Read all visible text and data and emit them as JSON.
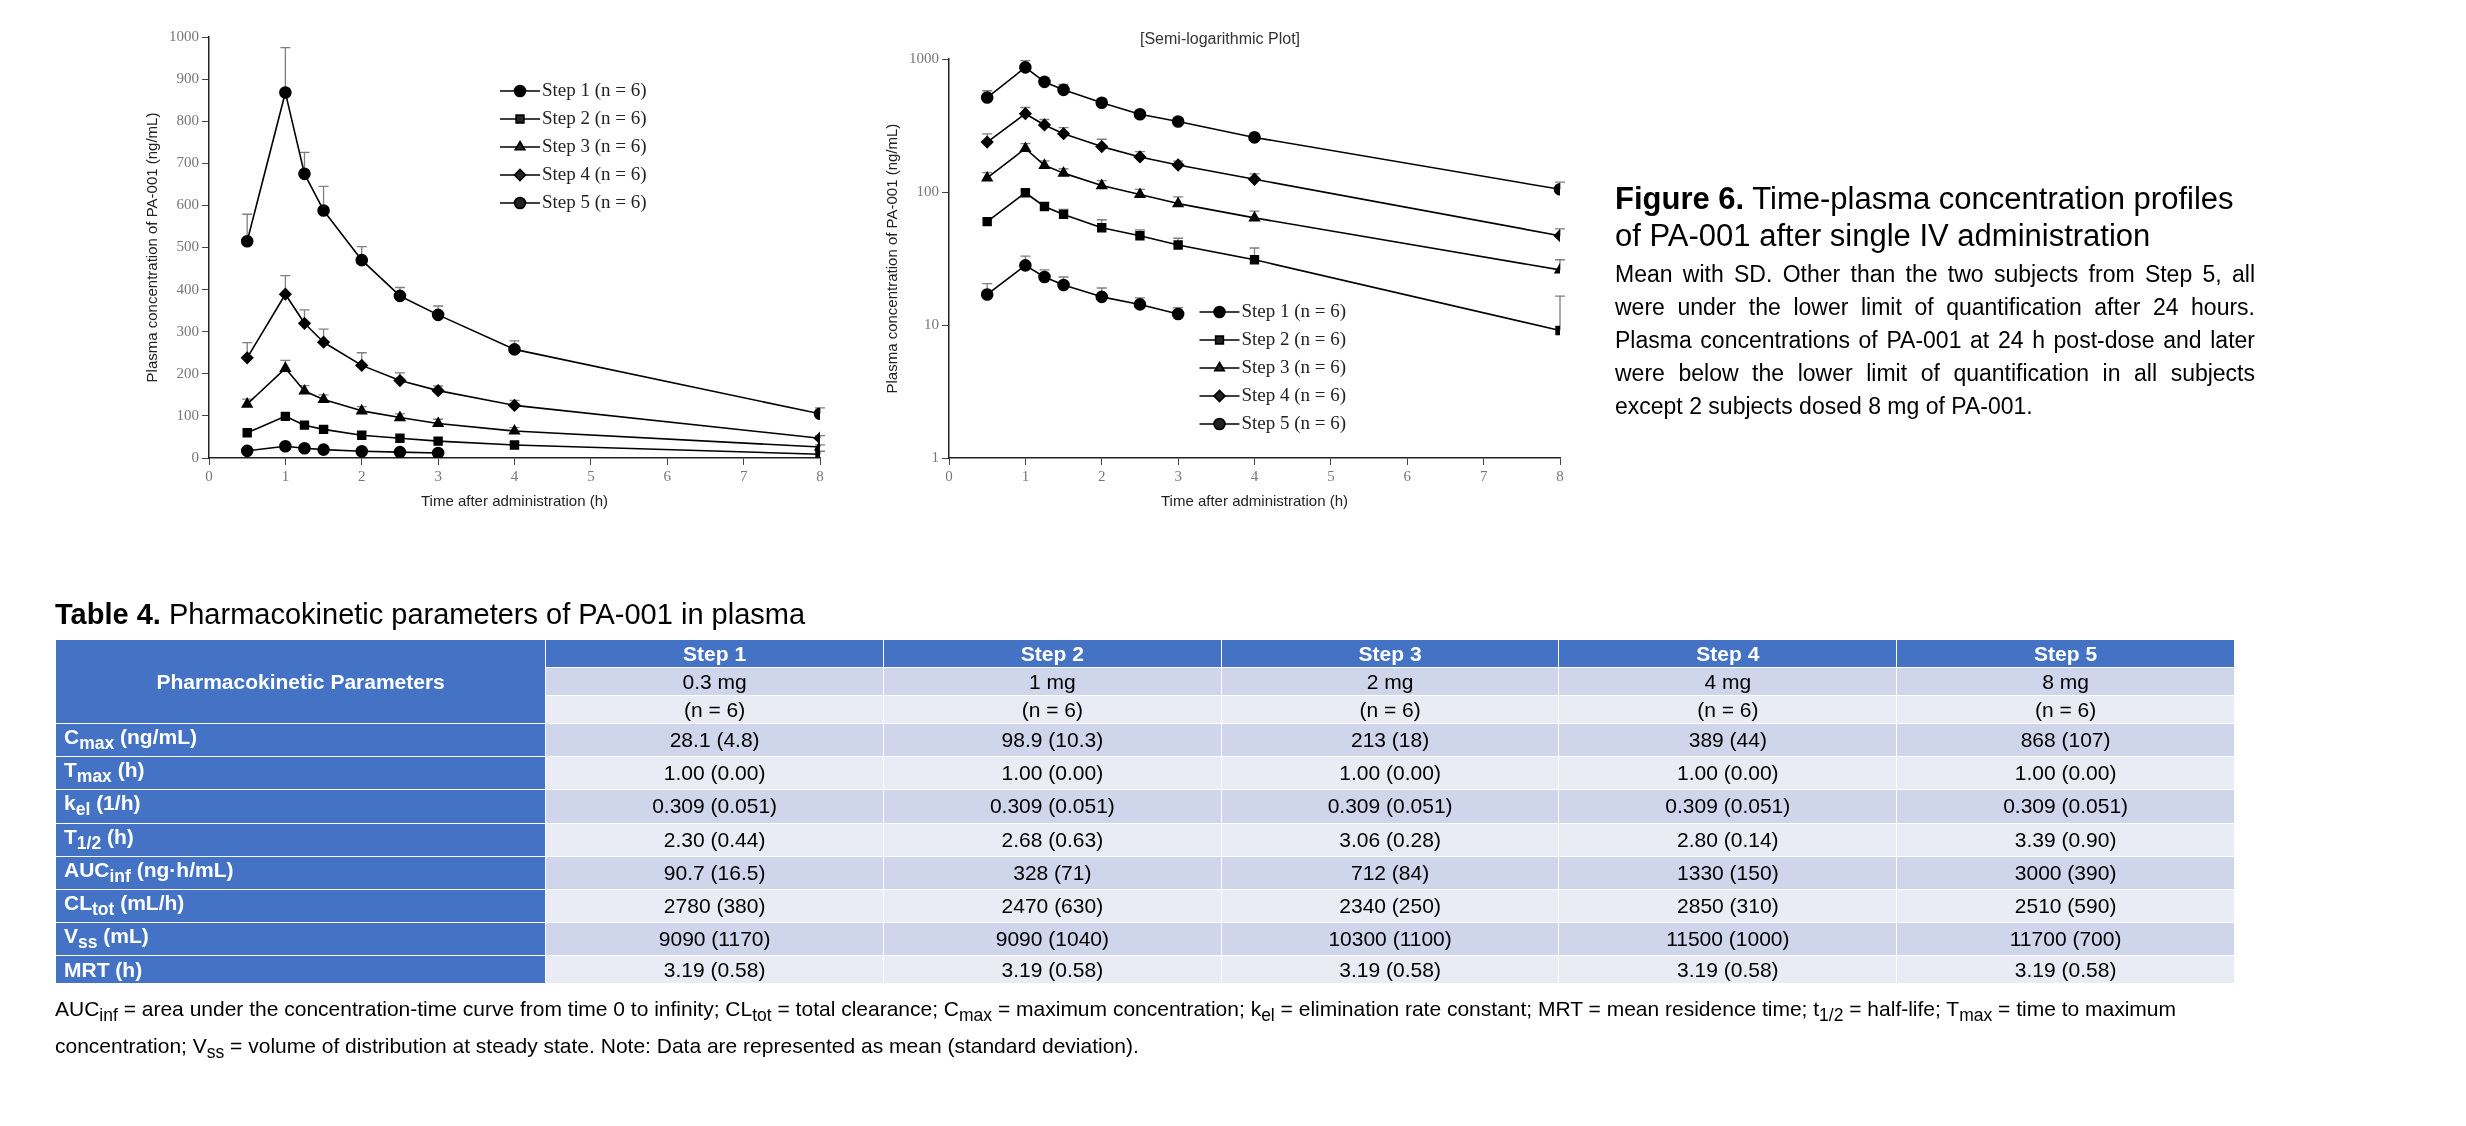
{
  "chart_data": [
    {
      "type": "line",
      "xlabel": "Time after administration (h)",
      "ylabel": "Plasma concentration of PA-001 (ng/mL)",
      "xlim": [
        0,
        8
      ],
      "xticks": [
        0,
        1,
        2,
        3,
        4,
        5,
        6,
        7,
        8
      ],
      "ylim": [
        0,
        1000
      ],
      "yticks": [
        0,
        100,
        200,
        300,
        400,
        500,
        600,
        700,
        800,
        900,
        1000
      ],
      "grid": false,
      "legend": "top right",
      "x": [
        0.5,
        1,
        1.25,
        1.5,
        2,
        2.5,
        3,
        4,
        8
      ],
      "series": [
        {
          "name": "Step 1 (n = 6)",
          "color": "#000000",
          "marker": "circle",
          "values": [
            17,
            28,
            23,
            20,
            16,
            14,
            12,
            null,
            null
          ]
        },
        {
          "name": "Step 2 (n = 6)",
          "color": "#000000",
          "marker": "square",
          "values": [
            60,
            99,
            78,
            68,
            54,
            47,
            40,
            31,
            9
          ],
          "errors": [
            null,
            null,
            null,
            [
              68,
              74
            ],
            [
              54,
              62
            ],
            null,
            null,
            [
              31,
              38
            ],
            [
              9,
              16
            ]
          ]
        },
        {
          "name": "Step 3 (n = 6)",
          "color": "#000000",
          "marker": "triangle",
          "values": [
            128,
            213,
            159,
            139,
            112,
            96,
            82,
            64,
            26
          ],
          "errors": [
            [
              128,
              140
            ],
            [
              213,
              232
            ],
            [
              159,
              172
            ],
            [
              139,
              150
            ],
            [
              112,
              122
            ],
            [
              96,
              105
            ],
            [
              82,
              92
            ],
            [
              64,
              72
            ],
            [
              26,
              31
            ]
          ]
        },
        {
          "name": "Step 4 (n = 6)",
          "color": "#000000",
          "marker": "diamond",
          "values": [
            238,
            389,
            320,
            275,
            220,
            184,
            160,
            125,
            47
          ],
          "errors": [
            [
              238,
              274
            ],
            [
              389,
              433
            ],
            [
              320,
              352
            ],
            [
              275,
              306
            ],
            [
              220,
              250
            ],
            [
              184,
              202
            ],
            [
              160,
              171
            ],
            [
              125,
              137
            ],
            [
              47,
              53
            ]
          ]
        },
        {
          "name": "Step 5 (n = 6)",
          "color": "#000000",
          "marker": "circle",
          "values": [
            515,
            868,
            675,
            588,
            470,
            385,
            340,
            258,
            105
          ],
          "errors": [
            [
              515,
              579
            ],
            [
              868,
              975
            ],
            [
              675,
              726
            ],
            [
              588,
              645
            ],
            [
              470,
              502
            ],
            [
              385,
              405
            ],
            [
              340,
              361
            ],
            [
              258,
              278
            ],
            [
              105,
              119
            ]
          ]
        }
      ]
    },
    {
      "type": "line",
      "title": "[Semi-logarithmic Plot]",
      "xlabel": "Time after administration (h)",
      "ylabel": "Plasma concentration of PA-001 (ng/mL)",
      "log": true,
      "xlim": [
        0,
        8
      ],
      "xticks": [
        0,
        1,
        2,
        3,
        4,
        5,
        6,
        7,
        8
      ],
      "ylim": [
        1,
        1000
      ],
      "yticks": [
        1,
        10,
        100,
        1000
      ],
      "grid": false,
      "legend": "bottom",
      "x": [
        0.5,
        1,
        1.25,
        1.5,
        2,
        2.5,
        3,
        4,
        8
      ],
      "series": [
        {
          "name": "Step 1 (n = 6)",
          "color": "#000000",
          "marker": "circle",
          "values": [
            17,
            28.1,
            23,
            20,
            16.3,
            14.3,
            12.1,
            null,
            null
          ],
          "errors": [
            [
              17,
              20.5
            ],
            [
              28.1,
              33
            ],
            [
              23,
              26
            ],
            [
              20,
              23
            ],
            [
              16.3,
              19
            ],
            [
              14.3,
              16
            ],
            [
              12.1,
              13.5
            ],
            null,
            null
          ]
        },
        {
          "name": "Step 2 (n = 6)",
          "color": "#000000",
          "marker": "square",
          "values": [
            60,
            98.9,
            78,
            68,
            54,
            47,
            40,
            31,
            9.1
          ],
          "errors": [
            [
              60,
              63
            ],
            [
              98.9,
              104
            ],
            [
              78,
              83
            ],
            [
              68,
              74
            ],
            [
              54,
              62
            ],
            [
              47,
              52
            ],
            [
              40,
              45
            ],
            [
              31,
              38
            ],
            [
              9.1,
              16.5
            ]
          ]
        },
        {
          "name": "Step 3 (n = 6)",
          "color": "#000000",
          "marker": "triangle",
          "values": [
            128,
            213,
            159,
            139,
            112,
            96,
            82,
            64,
            26
          ],
          "errors": [
            [
              128,
              140
            ],
            [
              213,
              232
            ],
            [
              159,
              172
            ],
            [
              139,
              150
            ],
            [
              112,
              122
            ],
            [
              96,
              105
            ],
            [
              82,
              92
            ],
            [
              64,
              72
            ],
            [
              26,
              31
            ]
          ]
        },
        {
          "name": "Step 4 (n = 6)",
          "color": "#000000",
          "marker": "diamond",
          "values": [
            238,
            389,
            320,
            275,
            220,
            184,
            160,
            125,
            47
          ],
          "errors": [
            [
              238,
              274
            ],
            [
              389,
              433
            ],
            [
              320,
              352
            ],
            [
              275,
              306
            ],
            [
              220,
              250
            ],
            [
              184,
              202
            ],
            [
              160,
              171
            ],
            [
              125,
              137
            ],
            [
              47,
              53
            ]
          ]
        },
        {
          "name": "Step 5 (n = 6)",
          "color": "#000000",
          "marker": "circle",
          "values": [
            515,
            868,
            675,
            588,
            470,
            385,
            340,
            258,
            105
          ],
          "errors": [
            [
              515,
              579
            ],
            [
              868,
              975
            ],
            [
              675,
              726
            ],
            [
              588,
              645
            ],
            [
              470,
              502
            ],
            [
              385,
              405
            ],
            [
              340,
              361
            ],
            [
              258,
              278
            ],
            [
              105,
              119
            ]
          ]
        }
      ]
    },
    {
      "type": "other",
      "title": "Figure 6. Time-plasma concentration profiles of PA-001 after single IV administration",
      "annotations": [
        "Mean with SD. Other than the two subjects from Step 5, all were under the lower limit of quantification after 24 hours. Plasma concentrations of PA-001 at 24 h post-dose and later were below the lower limit of quantification in all subjects except 2 subjects dosed 8 mg of PA-001."
      ]
    },
    {
      "type": "other",
      "title": "Table 4. Pharmacokinetic parameters of PA-001 in plasma",
      "ylabel": "Pharmacokinetic Parameters",
      "categories": [
        "Step 1",
        "Step 2",
        "Step 3",
        "Step 4",
        "Step 5"
      ],
      "y_categories": [
        null,
        null,
        "C$_{max}$ (ng/mL)",
        "T$_{max}$ (h)",
        "k$_{el}$ (1/h)",
        "T$_{1/2}$ (h)",
        "AUC$_{inf}$ (ng·h/mL)",
        "CL$_{tot}$ (mL/h)",
        "V$_{ss}$ (mL)",
        "MRT (h)"
      ],
      "cell_labels": [
        [
          "0.3 mg",
          "1 mg",
          "2 mg",
          "4 mg",
          "8 mg"
        ],
        [
          "(n = 6)",
          "(n = 6)",
          "(n = 6)",
          "(n = 6)",
          "(n = 6)"
        ],
        [
          "28.1 (4.8)",
          "98.9 (10.3)",
          "213 (18)",
          "389 (44)",
          "868 (107)"
        ],
        [
          "1.00 (0.00)",
          "1.00 (0.00)",
          "1.00 (0.00)",
          "1.00 (0.00)",
          "1.00 (0.00)"
        ],
        [
          "0.309 (0.051)",
          "0.309 (0.051)",
          "0.309 (0.051)",
          "0.309 (0.051)",
          "0.309 (0.051)"
        ],
        [
          "2.30 (0.44)",
          "2.68 (0.63)",
          "3.06 (0.28)",
          "2.80 (0.14)",
          "3.39 (0.90)"
        ],
        [
          "90.7 (16.5)",
          "328 (71)",
          "712 (84)",
          "1330 (150)",
          "3000 (390)"
        ],
        [
          "2780 (380)",
          "2470 (630)",
          "2340 (250)",
          "2850 (310)",
          "2510 (590)"
        ],
        [
          "9090 (1170)",
          "9090 (1040)",
          "10300 (1100)",
          "11500 (1000)",
          "11700 (700)"
        ],
        [
          "3.19 (0.58)",
          "3.19 (0.58)",
          "3.19 (0.58)",
          "3.19 (0.58)",
          "3.19 (0.58)"
        ]
      ],
      "annotations": [
        "AUC$_{inf}$ = area under the concentration-time curve from time 0 to infinity; CL$_{tot}$ = total clearance; C$_{max}$ = maximum concentration; k$_{el}$ = elimination rate constant; MRT = mean residence time; t$_{1/2}$ = half-life; T$_{max}$ = time to maximum concentration; V$_{ss}$ = volume of distribution at steady state. Note: Data are represented as mean (standard deviation)."
      ]
    }
  ]
}
